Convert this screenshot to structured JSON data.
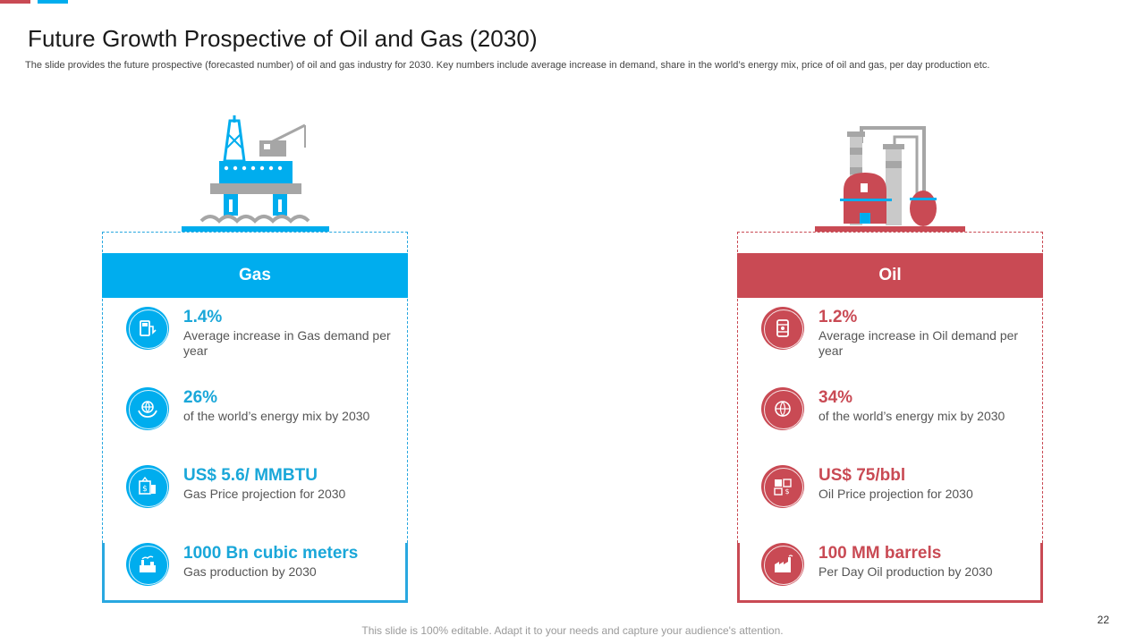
{
  "colors": {
    "gas": "#00adee",
    "oil": "#c94a54",
    "grey": "#a6a6a6"
  },
  "slide": {
    "title": "Future Growth Prospective of Oil and Gas (2030)",
    "subtitle": "The slide provides the future prospective (forecasted number) of oil and gas industry for 2030. Key numbers include average increase in demand, share in the world’s energy mix, price of oil and gas, per day production etc.",
    "footer": "This slide is 100% editable. Adapt it to your needs and capture your audience's attention.",
    "page_number": "22"
  },
  "gas": {
    "header": "Gas",
    "illustration": "offshore-rig-illustration",
    "items": [
      {
        "icon": "gas-pump-icon",
        "value": "1.4%",
        "desc": "Average increase in Gas demand per year"
      },
      {
        "icon": "globe-hands-icon",
        "value": "26%",
        "desc": "of the world’s energy mix  by 2030"
      },
      {
        "icon": "price-tag-icon",
        "value": "US$ 5.6/ MMBTU",
        "desc": "Gas Price projection for 2030"
      },
      {
        "icon": "gas-plant-icon",
        "value": "1000 Bn cubic meters",
        "desc": "Gas production by 2030"
      }
    ]
  },
  "oil": {
    "header": "Oil",
    "illustration": "refinery-illustration",
    "items": [
      {
        "icon": "oil-barrel-icon",
        "value": "1.2%",
        "desc": "Average increase in Oil demand per year"
      },
      {
        "icon": "globe-icon",
        "value": "34%",
        "desc": "of the world’s energy mix  by 2030"
      },
      {
        "icon": "price-icon",
        "value": "US$ 75/bbl",
        "desc": "Oil Price projection for 2030"
      },
      {
        "icon": "factory-icon",
        "value": "100 MM barrels",
        "desc": "Per Day Oil production by 2030"
      }
    ]
  }
}
